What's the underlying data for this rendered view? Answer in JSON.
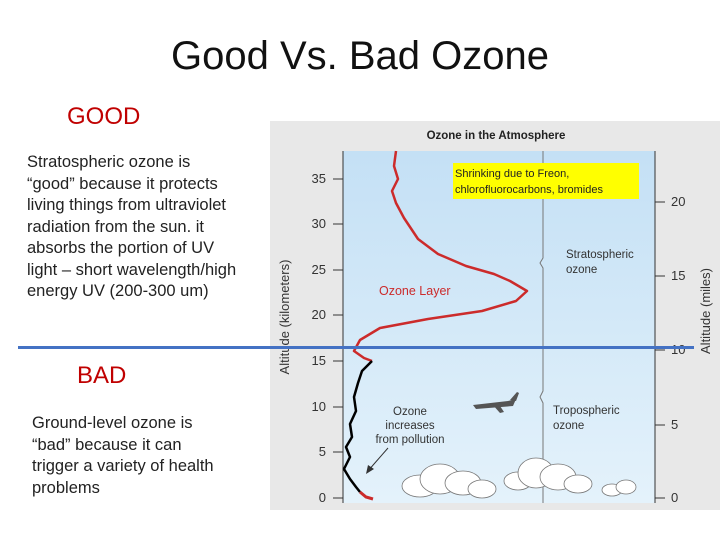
{
  "slide": {
    "title": "Good Vs. Bad Ozone",
    "good": {
      "heading": "GOOD",
      "text": "Stratospheric ozone is\n“good” because it protects\nliving things from ultraviolet\nradiation from the sun. it\nabsorbs the portion of UV\nlight – short wavelength/high\nenergy  UV (200-300 um)"
    },
    "bad": {
      "heading": "BAD",
      "text": "Ground-level ozone is\n“bad” because it can\ntrigger a variety of health\nproblems"
    }
  },
  "figure": {
    "title": "Ozone in the Atmosphere",
    "left_axis_label": "Altitude (kilometers)",
    "right_axis_label": "Altitude (miles)",
    "left_ticks": [
      "35",
      "30",
      "25",
      "20",
      "15",
      "10",
      "5",
      "0"
    ],
    "right_ticks": [
      "20",
      "15",
      "10",
      "5",
      "0"
    ],
    "ozone_layer_label": "Ozone Layer",
    "stratospheric_label_1": "Stratospheric",
    "stratospheric_label_2": "ozone",
    "tropospheric_label_1": "Tropospheric",
    "tropospheric_label_2": "ozone",
    "pollution_label_1": "Ozone",
    "pollution_label_2": "increases",
    "pollution_label_3": "from pollution",
    "note_line_1": "Shrinking due to Freon,",
    "note_line_2": "chlorofluorocarbons, bromides",
    "colors": {
      "sky_top": "#c4e0f5",
      "sky_bottom": "#e4f2fb",
      "ozone_curve": "#cc2b2b",
      "pollution_curve": "#000000",
      "note_highlight": "#ffff00"
    }
  },
  "colors": {
    "heading": "#c00000",
    "divider": "#4472c4"
  }
}
